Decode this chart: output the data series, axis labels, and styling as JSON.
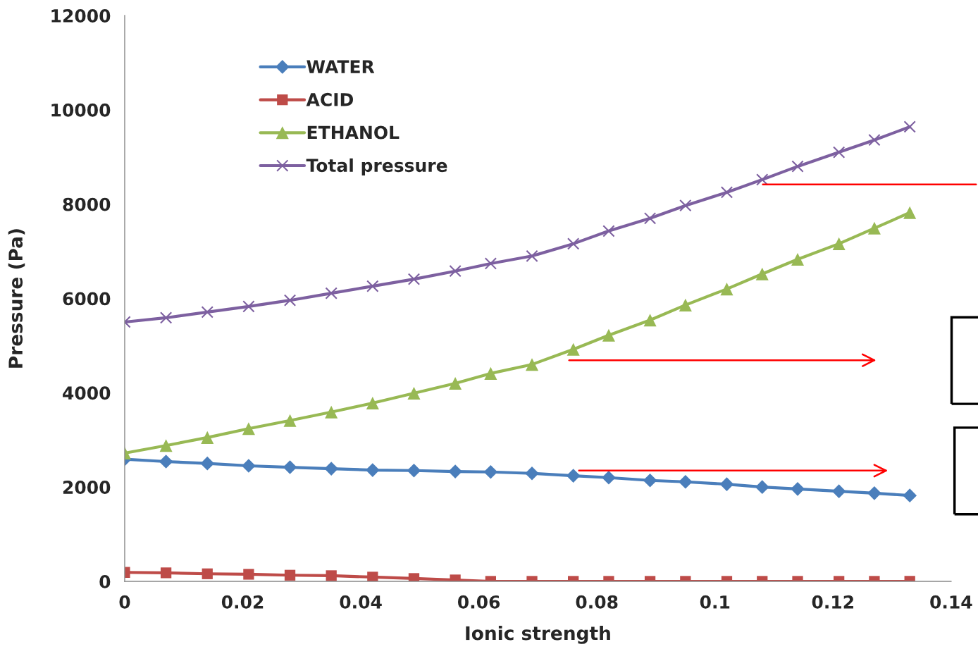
{
  "chart_data": {
    "type": "line",
    "xlabel": "Ionic strength",
    "ylabel": "Pressure (Pa)",
    "x": [
      0,
      0.007,
      0.014,
      0.021,
      0.028,
      0.035,
      0.042,
      0.049,
      0.056,
      0.062,
      0.069,
      0.076,
      0.082,
      0.089,
      0.095,
      0.102,
      0.108,
      0.114,
      0.121,
      0.127,
      0.133
    ],
    "series": [
      {
        "name": "WATER",
        "color": "#4a7ebb",
        "marker": "diamond",
        "values": [
          2590,
          2540,
          2500,
          2450,
          2420,
          2390,
          2360,
          2350,
          2330,
          2320,
          2290,
          2240,
          2200,
          2140,
          2110,
          2060,
          2000,
          1960,
          1910,
          1870,
          1820
        ]
      },
      {
        "name": "ACID",
        "color": "#be4b48",
        "marker": "square",
        "values": [
          190,
          180,
          160,
          150,
          130,
          120,
          90,
          60,
          30,
          0,
          0,
          0,
          0,
          0,
          0,
          0,
          0,
          0,
          0,
          0,
          0
        ]
      },
      {
        "name": "ETHANOL",
        "color": "#98b954",
        "marker": "triangle",
        "values": [
          2720,
          2880,
          3050,
          3240,
          3410,
          3590,
          3780,
          3990,
          4200,
          4410,
          4600,
          4920,
          5220,
          5540,
          5860,
          6200,
          6520,
          6830,
          7160,
          7490,
          7820
        ]
      },
      {
        "name": "Total pressure",
        "color": "#7d60a0",
        "marker": "cross",
        "values": [
          5500,
          5590,
          5710,
          5830,
          5960,
          6110,
          6260,
          6410,
          6580,
          6740,
          6900,
          7160,
          7430,
          7700,
          7970,
          8250,
          8520,
          8800,
          9100,
          9360,
          9640
        ]
      }
    ],
    "xlim": [
      0,
      0.14
    ],
    "xticks": [
      0,
      0.02,
      0.04,
      0.06,
      0.08,
      0.1,
      0.12,
      0.14
    ],
    "ylim": [
      0,
      12000
    ],
    "yticks": [
      0,
      2000,
      4000,
      6000,
      8000,
      10000,
      12000
    ],
    "grid": false,
    "legend": "top left"
  }
}
